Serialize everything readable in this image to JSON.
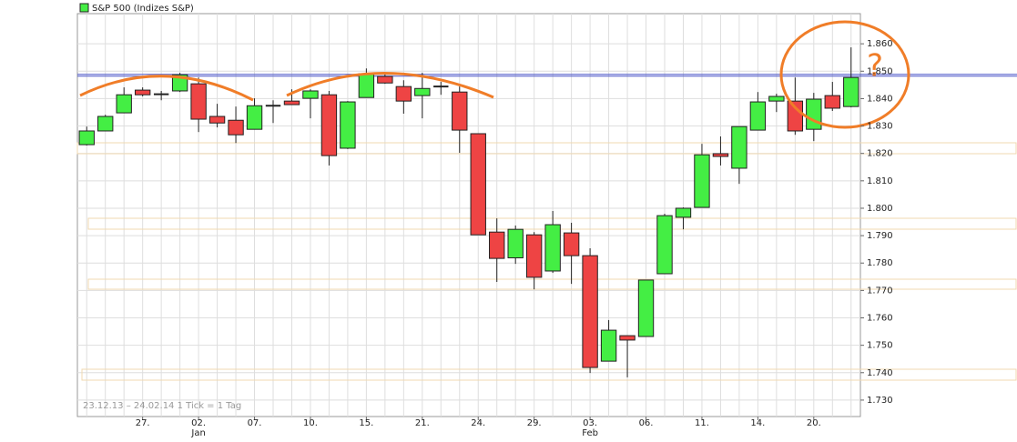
{
  "chart_data": {
    "type": "candlestick",
    "title": "S&P 500 (Indizes S&P)",
    "footnote": "23.12.13 – 24.02.14   1 Tick = 1 Tag",
    "annotations": [
      "?"
    ],
    "categories": [
      null,
      null,
      null,
      "27.",
      null,
      null,
      "02.",
      null,
      null,
      "07.",
      null,
      null,
      "10.",
      null,
      null,
      "15.",
      null,
      null,
      "21.",
      null,
      null,
      "24.",
      null,
      null,
      "29.",
      null,
      null,
      "03.",
      null,
      null,
      "06.",
      null,
      null,
      "11.",
      null,
      null,
      "14.",
      null,
      null,
      "20.",
      null,
      null
    ],
    "category_sublabels": [
      null,
      null,
      null,
      null,
      null,
      null,
      "Jan",
      null,
      null,
      null,
      null,
      null,
      null,
      null,
      null,
      null,
      null,
      null,
      null,
      null,
      null,
      null,
      null,
      null,
      null,
      null,
      null,
      "Feb",
      null,
      null,
      null,
      null,
      null,
      null,
      null,
      null,
      null,
      null,
      null,
      null,
      null,
      null
    ],
    "open": [
      1823.2,
      1828.2,
      1834.8,
      1843.1,
      1841.6,
      1842.8,
      1845.4,
      1833.5,
      1832.1,
      1828.8,
      1837.4,
      1839.1,
      1840.1,
      1841.4,
      1821.9,
      1840.4,
      1848.1,
      1844.4,
      1841.1,
      1844.4,
      1842.4,
      1827.2,
      1791.3,
      1781.9,
      1790.3,
      1777.1,
      1791.0,
      1782.7,
      1744.2,
      1753.5,
      1753.2,
      1776.1,
      1796.7,
      1800.3,
      1819.9,
      1814.6,
      1828.5,
      1839.1,
      1839.1,
      1828.8,
      1841.1,
      1837.1
    ],
    "high": [
      1829.8,
      1834.1,
      1844.1,
      1844.1,
      1842.8,
      1849.4,
      1847.7,
      1838.1,
      1837.1,
      1840.1,
      1839.4,
      1843.4,
      1843.4,
      1842.8,
      1839.1,
      1851.0,
      1849.4,
      1846.7,
      1849.4,
      1846.1,
      1844.4,
      1827.2,
      1796.3,
      1793.7,
      1791.3,
      1799.0,
      1794.7,
      1785.4,
      1759.2,
      1753.5,
      1773.8,
      1798.0,
      1800.3,
      1823.5,
      1826.2,
      1829.8,
      1842.4,
      1841.8,
      1847.7,
      1842.1,
      1846.1,
      1858.7
    ],
    "low": [
      1822.9,
      1828.2,
      1834.8,
      1840.8,
      1839.4,
      1842.4,
      1827.8,
      1829.5,
      1823.8,
      1828.8,
      1831.1,
      1837.8,
      1832.8,
      1815.6,
      1821.6,
      1840.4,
      1845.4,
      1834.5,
      1832.8,
      1841.4,
      1820.2,
      1790.3,
      1773.1,
      1779.7,
      1770.4,
      1776.4,
      1772.4,
      1739.9,
      1744.2,
      1738.3,
      1753.2,
      1776.1,
      1792.3,
      1800.3,
      1815.6,
      1808.9,
      1828.5,
      1835.1,
      1826.8,
      1824.5,
      1835.5,
      1836.8
    ],
    "close": [
      1828.2,
      1833.5,
      1841.4,
      1841.4,
      1841.6,
      1848.7,
      1832.5,
      1831.1,
      1826.8,
      1837.4,
      1837.4,
      1837.8,
      1842.8,
      1819.2,
      1838.8,
      1849.1,
      1845.7,
      1839.1,
      1843.7,
      1844.4,
      1828.5,
      1790.3,
      1781.7,
      1792.3,
      1774.8,
      1794.0,
      1782.7,
      1741.9,
      1755.5,
      1751.9,
      1773.8,
      1797.3,
      1800.0,
      1819.5,
      1818.9,
      1829.8,
      1838.8,
      1840.8,
      1828.2,
      1839.8,
      1836.5,
      1847.7
    ],
    "up_color": "#44ee44",
    "down_color": "#ee4444",
    "reference_line": {
      "value": 1848.5,
      "color": "#4a55c8"
    },
    "ylim": [
      1724,
      1871
    ],
    "yticks": [
      {
        "value": 1730,
        "label": "1.730"
      },
      {
        "value": 1740,
        "label": "1.740"
      },
      {
        "value": 1750,
        "label": "1.750"
      },
      {
        "value": 1760,
        "label": "1.760"
      },
      {
        "value": 1770,
        "label": "1.770"
      },
      {
        "value": 1780,
        "label": "1.780"
      },
      {
        "value": 1790,
        "label": "1.790"
      },
      {
        "value": 1800,
        "label": "1.800"
      },
      {
        "value": 1810,
        "label": "1.810"
      },
      {
        "value": 1820,
        "label": "1.820"
      },
      {
        "value": 1830,
        "label": "1.830"
      },
      {
        "value": 1840,
        "label": "1.840"
      },
      {
        "value": 1850,
        "label": "1.850"
      },
      {
        "value": 1860,
        "label": "1.860"
      }
    ],
    "grid": true
  }
}
